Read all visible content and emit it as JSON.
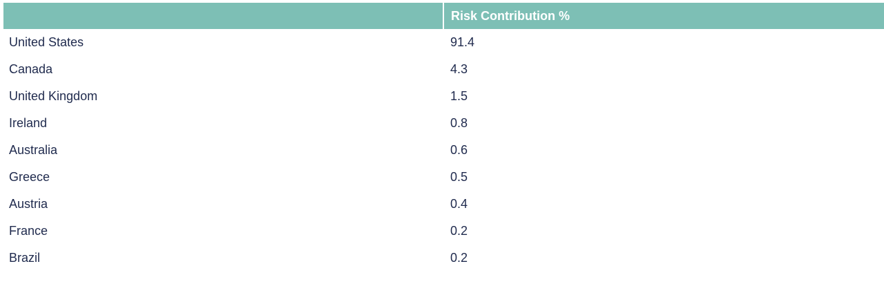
{
  "table": {
    "columns": [
      "",
      "Risk Contribution %"
    ],
    "rows": [
      {
        "country": "United States",
        "value": "91.4"
      },
      {
        "country": "Canada",
        "value": "4.3"
      },
      {
        "country": "United Kingdom",
        "value": "1.5"
      },
      {
        "country": "Ireland",
        "value": "0.8"
      },
      {
        "country": "Australia",
        "value": "0.6"
      },
      {
        "country": "Greece",
        "value": "0.5"
      },
      {
        "country": "Austria",
        "value": "0.4"
      },
      {
        "country": "France",
        "value": "0.2"
      },
      {
        "country": "Brazil",
        "value": "0.2"
      }
    ]
  },
  "colors": {
    "header_bg": "#7dbfb5",
    "header_text": "#ffffff",
    "body_text": "#1f2a4d"
  }
}
